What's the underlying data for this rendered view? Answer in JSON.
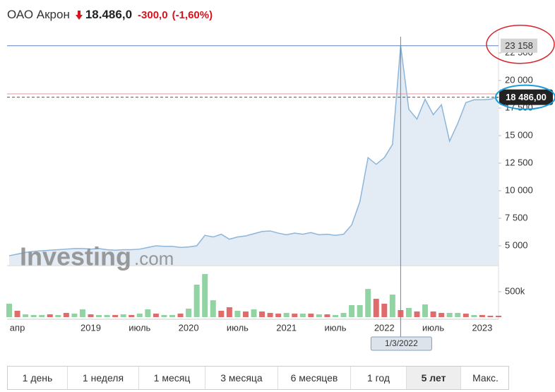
{
  "header": {
    "name": "ОАО Акрон",
    "price": "18.486,0",
    "change": "-300,0",
    "change_percent": "(-1,60%)"
  },
  "chart_data": {
    "type": "line",
    "categories": [
      null,
      "апр",
      null,
      null,
      null,
      null,
      null,
      null,
      null,
      null,
      "2019",
      null,
      null,
      null,
      null,
      null,
      "июль",
      null,
      null,
      null,
      null,
      null,
      "2020",
      null,
      null,
      null,
      null,
      null,
      "июль",
      null,
      null,
      null,
      null,
      null,
      "2021",
      null,
      null,
      null,
      null,
      null,
      "июль",
      null,
      null,
      null,
      null,
      null,
      "2022",
      null,
      null,
      null,
      null,
      null,
      "июль",
      null,
      null,
      null,
      null,
      null,
      "2023",
      null,
      null
    ],
    "series": [
      {
        "color": "#8db6da",
        "fill": "#e3ebf4",
        "values": [
          4100,
          4250,
          4400,
          4500,
          4550,
          4600,
          4650,
          4700,
          4750,
          4750,
          4700,
          4750,
          4650,
          4600,
          4650,
          4650,
          4700,
          4850,
          5000,
          4950,
          4950,
          4850,
          4900,
          5000,
          5950,
          5800,
          6050,
          5600,
          5800,
          5900,
          6100,
          6300,
          6350,
          6150,
          6000,
          6150,
          6050,
          6200,
          6000,
          6050,
          5950,
          6050,
          6900,
          9000,
          13000,
          12400,
          13000,
          14200,
          23158,
          17400,
          16500,
          18300,
          16900,
          17800,
          14500,
          16100,
          18000,
          18250,
          18250,
          18300,
          18486
        ]
      }
    ],
    "ylim": [
      3270,
      23780
    ],
    "yticks": [
      {
        "value": 5000,
        "label": "5 000"
      },
      {
        "value": 7500,
        "label": "7 500"
      },
      {
        "value": 10000,
        "label": "10 000"
      },
      {
        "value": 12500,
        "label": "12 500"
      },
      {
        "value": 15000,
        "label": "15 000"
      },
      {
        "value": 17500,
        "label": "17 500"
      },
      {
        "value": 20000,
        "label": "20 000"
      },
      {
        "value": 22500,
        "label": "22 500"
      }
    ],
    "previous_close": 18786,
    "previous_close_color": "#e4a3ad",
    "last_price": {
      "value": 18486,
      "label": "18 486,00"
    },
    "crosshair": {
      "value": 23158,
      "label": "23 158",
      "date_label": "1/3/2022",
      "color": "#5b86bf"
    },
    "volume": {
      "values": [
        264000,
        125000,
        55000,
        42000,
        42000,
        55000,
        42000,
        83000,
        69000,
        153000,
        55000,
        42000,
        42000,
        42000,
        55000,
        42000,
        69000,
        153000,
        69000,
        42000,
        42000,
        69000,
        167000,
        640000,
        850000,
        333000,
        125000,
        195000,
        125000,
        111000,
        153000,
        111000,
        83000,
        69000,
        83000,
        69000,
        69000,
        69000,
        55000,
        55000,
        42000,
        83000,
        236000,
        236000,
        555000,
        361000,
        264000,
        444000,
        139000,
        181000,
        111000,
        250000,
        111000,
        83000,
        83000,
        83000,
        69000,
        42000,
        42000,
        28000,
        28000
      ],
      "colors": [
        "#92d3a3",
        "#e06b6b",
        "#92d3a3",
        "#92d3a3",
        "#92d3a3",
        "#e06b6b",
        "#92d3a3",
        "#e06b6b",
        "#92d3a3",
        "#92d3a3",
        "#e06b6b",
        "#92d3a3",
        "#92d3a3",
        "#e06b6b",
        "#92d3a3",
        "#e06b6b",
        "#92d3a3",
        "#92d3a3",
        "#e06b6b",
        "#92d3a3",
        "#92d3a3",
        "#e06b6b",
        "#92d3a3",
        "#92d3a3",
        "#92d3a3",
        "#92d3a3",
        "#e06b6b",
        "#e06b6b",
        "#92d3a3",
        "#e06b6b",
        "#92d3a3",
        "#e06b6b",
        "#e06b6b",
        "#e06b6b",
        "#92d3a3",
        "#e06b6b",
        "#92d3a3",
        "#e06b6b",
        "#92d3a3",
        "#e06b6b",
        "#92d3a3",
        "#92d3a3",
        "#92d3a3",
        "#92d3a3",
        "#92d3a3",
        "#e06b6b",
        "#e06b6b",
        "#92d3a3",
        "#e06b6b",
        "#92d3a3",
        "#e06b6b",
        "#92d3a3",
        "#e06b6b",
        "#e06b6b",
        "#92d3a3",
        "#92d3a3",
        "#e06b6b",
        "#92d3a3",
        "#e06b6b",
        "#e06b6b",
        "#e06b6b"
      ],
      "ylim": [
        0,
        960000
      ],
      "yticks": [
        {
          "value": 500000,
          "label": "500k"
        }
      ]
    },
    "watermark": [
      "Investing",
      ".com"
    ]
  },
  "range_buttons": {
    "items": [
      "1 день",
      "1 неделя",
      "1 месяц",
      "3 месяца",
      "6 месяцев",
      "1 год",
      "5 лет",
      "Макс."
    ],
    "active": 6
  }
}
